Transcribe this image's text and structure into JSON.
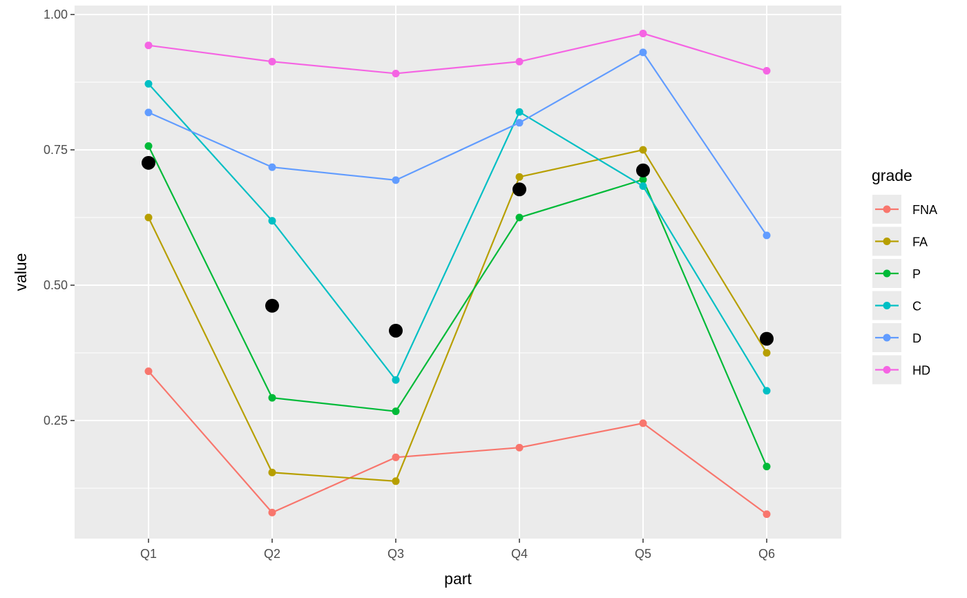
{
  "chart_data": {
    "type": "line",
    "xlabel": "part",
    "ylabel": "value",
    "categories": [
      "Q1",
      "Q2",
      "Q3",
      "Q4",
      "Q5",
      "Q6"
    ],
    "ylim": [
      0.05,
      1.0
    ],
    "yticks": [
      0.25,
      0.5,
      0.75,
      1.0
    ],
    "ytick_labels": [
      "0.25",
      "0.50",
      "0.75",
      "1.00"
    ],
    "grid": true,
    "legend": {
      "title": "grade",
      "position": "right"
    },
    "series": [
      {
        "name": "FNA",
        "color": "#F8766D",
        "values": [
          0.341,
          0.08,
          0.182,
          0.2,
          0.245,
          0.077
        ]
      },
      {
        "name": "FA",
        "color": "#B79F00",
        "values": [
          0.625,
          0.154,
          0.138,
          0.7,
          0.75,
          0.375
        ]
      },
      {
        "name": "P",
        "color": "#00BA38",
        "values": [
          0.757,
          0.292,
          0.267,
          0.625,
          0.695,
          0.165
        ]
      },
      {
        "name": "C",
        "color": "#00BFC4",
        "values": [
          0.872,
          0.619,
          0.325,
          0.82,
          0.683,
          0.305
        ]
      },
      {
        "name": "D",
        "color": "#619CFF",
        "values": [
          0.819,
          0.718,
          0.694,
          0.8,
          0.93,
          0.592
        ]
      },
      {
        "name": "HD",
        "color": "#F564E3",
        "values": [
          0.943,
          0.913,
          0.891,
          0.913,
          0.965,
          0.896
        ]
      }
    ],
    "mean_points": {
      "color": "#000000",
      "values": [
        0.726,
        0.462,
        0.416,
        0.677,
        0.712,
        0.401
      ]
    }
  }
}
